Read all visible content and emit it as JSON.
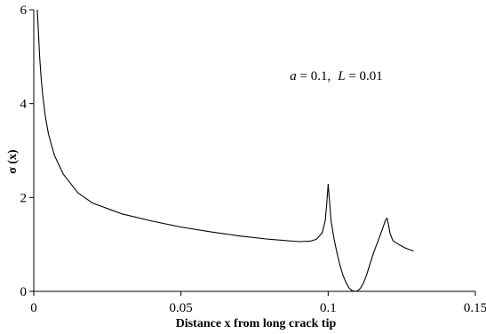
{
  "chart_data": {
    "type": "line",
    "xlabel": "Distance x from long crack tip",
    "ylabel": "σ (x)",
    "xlim": [
      0,
      0.15
    ],
    "ylim": [
      0,
      6
    ],
    "x_ticks": [
      "0",
      "0.05",
      "0.1",
      "0.15"
    ],
    "x_tick_values": [
      0,
      0.05,
      0.1,
      0.15
    ],
    "y_ticks": [
      "0",
      "2",
      "4",
      "6"
    ],
    "y_tick_values": [
      0,
      2,
      4,
      6
    ],
    "grid": false,
    "annotation": {
      "a_symbol": "a",
      "a_value": " = 0.1,",
      "L_symbol": "L",
      "L_value": " = 0.01"
    },
    "annotation_pos": [
      0.087,
      4.6
    ],
    "series": [
      {
        "color": "#000000",
        "x": [
          0.0012,
          0.0016,
          0.002,
          0.0025,
          0.003,
          0.004,
          0.005,
          0.007,
          0.01,
          0.015,
          0.02,
          0.03,
          0.04,
          0.05,
          0.06,
          0.07,
          0.08,
          0.09,
          0.094,
          0.096,
          0.098,
          0.099,
          0.0995,
          0.1,
          0.1005,
          0.101,
          0.102,
          0.103,
          0.104,
          0.105,
          0.106,
          0.107,
          0.108,
          0.109,
          0.11,
          0.111,
          0.112,
          0.113,
          0.114,
          0.115,
          0.116,
          0.117,
          0.118,
          0.119,
          0.1195,
          0.12,
          0.1205,
          0.121,
          0.122,
          0.124,
          0.126,
          0.128,
          0.129
        ],
        "y": [
          6.0,
          5.5,
          5.0,
          4.55,
          4.2,
          3.7,
          3.35,
          2.9,
          2.5,
          2.1,
          1.88,
          1.65,
          1.5,
          1.37,
          1.27,
          1.18,
          1.11,
          1.06,
          1.07,
          1.11,
          1.25,
          1.5,
          1.85,
          2.28,
          1.9,
          1.5,
          1.12,
          0.82,
          0.56,
          0.35,
          0.2,
          0.08,
          0.02,
          0.0,
          0.01,
          0.07,
          0.18,
          0.34,
          0.54,
          0.74,
          0.92,
          1.08,
          1.25,
          1.43,
          1.52,
          1.56,
          1.42,
          1.24,
          1.08,
          1.0,
          0.93,
          0.88,
          0.86
        ]
      }
    ]
  }
}
